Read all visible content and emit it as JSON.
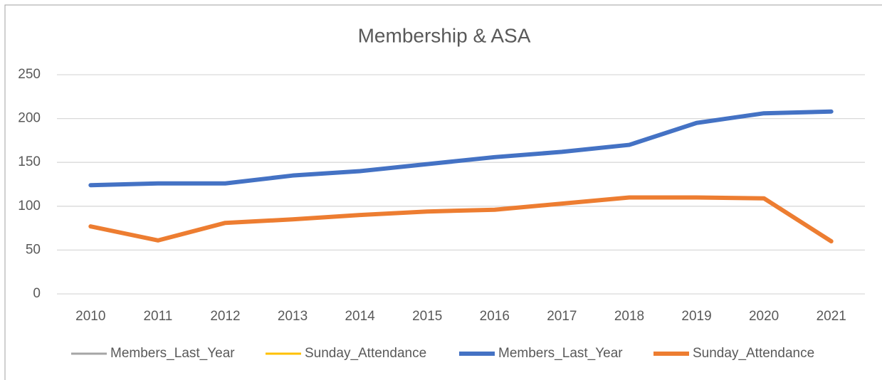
{
  "chart_data": {
    "type": "line",
    "title": "Membership & ASA",
    "categories": [
      "2010",
      "2011",
      "2012",
      "2013",
      "2014",
      "2015",
      "2016",
      "2017",
      "2018",
      "2019",
      "2020",
      "2021"
    ],
    "series": [
      {
        "name": "Members_Last_Year",
        "color": "#a5a5a5",
        "width": 3,
        "values": [
          124,
          126,
          126,
          135,
          140,
          148,
          156,
          162,
          170,
          195,
          206,
          208
        ]
      },
      {
        "name": "Sunday_Attendance",
        "color": "#ffc000",
        "width": 3,
        "values": [
          77,
          61,
          81,
          85,
          90,
          94,
          96,
          103,
          110,
          110,
          109,
          60
        ]
      },
      {
        "name": "Members_Last_Year",
        "color": "#4472c4",
        "width": 6,
        "values": [
          124,
          126,
          126,
          135,
          140,
          148,
          156,
          162,
          170,
          195,
          206,
          208
        ]
      },
      {
        "name": "Sunday_Attendance",
        "color": "#ed7d31",
        "width": 6,
        "values": [
          77,
          61,
          81,
          85,
          90,
          94,
          96,
          103,
          110,
          110,
          109,
          60
        ]
      }
    ],
    "ylim": [
      0,
      250
    ],
    "yticks": [
      0,
      50,
      100,
      150,
      200,
      250
    ],
    "grid": true,
    "legend": "bottom"
  }
}
